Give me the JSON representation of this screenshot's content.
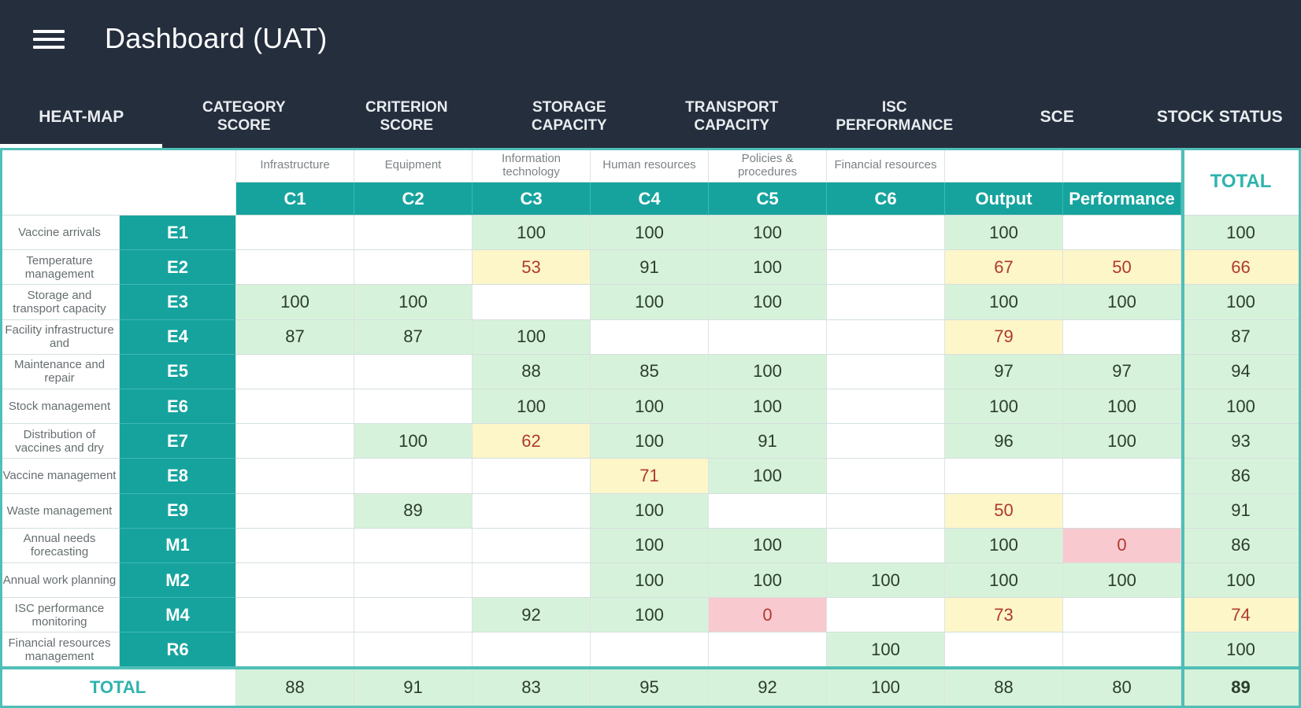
{
  "app": {
    "title": "Dashboard (UAT)"
  },
  "tabs": [
    {
      "label": "HEAT-MAP"
    },
    {
      "label": "CATEGORY\nSCORE"
    },
    {
      "label": "CRITERION\nSCORE"
    },
    {
      "label": "STORAGE\nCAPACITY"
    },
    {
      "label": "TRANSPORT\nCAPACITY"
    },
    {
      "label": "ISC\nPERFORMANCE"
    },
    {
      "label": "SCE"
    },
    {
      "label": "STOCK STATUS"
    }
  ],
  "active_tab": 0,
  "table": {
    "columns": [
      {
        "desc": "Infrastructure",
        "code": "C1"
      },
      {
        "desc": "Equipment",
        "code": "C2"
      },
      {
        "desc": "Information technology",
        "code": "C3"
      },
      {
        "desc": "Human resources",
        "code": "C4"
      },
      {
        "desc": "Policies & procedures",
        "code": "C5"
      },
      {
        "desc": "Financial resources",
        "code": "C6"
      },
      {
        "desc": "",
        "code": "Output"
      },
      {
        "desc": "",
        "code": "Performance"
      }
    ],
    "total_header": "TOTAL",
    "rows": [
      {
        "label": "Vaccine arrivals",
        "code": "E1",
        "values": [
          "",
          "",
          "100",
          "100",
          "100",
          "",
          "100",
          ""
        ],
        "total": "100"
      },
      {
        "label": "Temperature management",
        "code": "E2",
        "values": [
          "",
          "",
          "53",
          "91",
          "100",
          "",
          "67",
          "50"
        ],
        "total": "66"
      },
      {
        "label": "Storage and transport capacity",
        "code": "E3",
        "values": [
          "100",
          "100",
          "",
          "100",
          "100",
          "",
          "100",
          "100"
        ],
        "total": "100"
      },
      {
        "label": "Facility infrastructure and",
        "code": "E4",
        "values": [
          "87",
          "87",
          "100",
          "",
          "",
          "",
          "79",
          ""
        ],
        "total": "87"
      },
      {
        "label": "Maintenance and repair",
        "code": "E5",
        "values": [
          "",
          "",
          "88",
          "85",
          "100",
          "",
          "97",
          "97"
        ],
        "total": "94"
      },
      {
        "label": "Stock management",
        "code": "E6",
        "values": [
          "",
          "",
          "100",
          "100",
          "100",
          "",
          "100",
          "100"
        ],
        "total": "100"
      },
      {
        "label": "Distribution of vaccines and dry",
        "code": "E7",
        "values": [
          "",
          "100",
          "62",
          "100",
          "91",
          "",
          "96",
          "100"
        ],
        "total": "93"
      },
      {
        "label": "Vaccine management",
        "code": "E8",
        "values": [
          "",
          "",
          "",
          "71",
          "100",
          "",
          "",
          ""
        ],
        "total": "86"
      },
      {
        "label": "Waste management",
        "code": "E9",
        "values": [
          "",
          "89",
          "",
          "100",
          "",
          "",
          "50",
          ""
        ],
        "total": "91"
      },
      {
        "label": "Annual needs forecasting",
        "code": "M1",
        "values": [
          "",
          "",
          "",
          "100",
          "100",
          "",
          "100",
          "0"
        ],
        "total": "86"
      },
      {
        "label": "Annual work planning",
        "code": "M2",
        "values": [
          "",
          "",
          "",
          "100",
          "100",
          "100",
          "100",
          "100"
        ],
        "total": "100"
      },
      {
        "label": "ISC performance monitoring",
        "code": "M4",
        "values": [
          "",
          "",
          "92",
          "100",
          "0",
          "",
          "73",
          ""
        ],
        "total": "74"
      },
      {
        "label": "Financial resources management",
        "code": "R6",
        "values": [
          "",
          "",
          "",
          "",
          "",
          "100",
          "",
          ""
        ],
        "total": "100"
      }
    ],
    "total_row": {
      "label": "TOTAL",
      "values": [
        "88",
        "91",
        "83",
        "95",
        "92",
        "100",
        "88",
        "80"
      ],
      "total": "89"
    }
  },
  "colors": {
    "appbar": "#252e3d",
    "teal": "#16a39e",
    "good": "#d7f2da",
    "medium": "#fcf6c8",
    "bad": "#f9c9d0"
  }
}
